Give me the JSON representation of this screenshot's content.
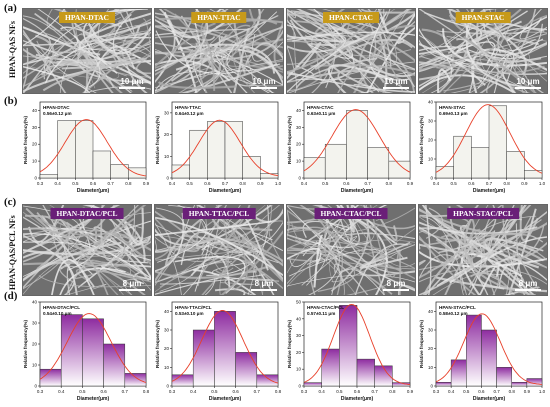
{
  "labels": {
    "a": "(a)",
    "b": "(b)",
    "c": "(c)",
    "d": "(d)",
    "row_a": "HPAN-QAS NFs",
    "row_c": "HPAN-QAS/PCL NFs"
  },
  "sem_a": [
    {
      "tag": "HPAN-DTAC",
      "scale": "10 μm"
    },
    {
      "tag": "HPAN-TTAC",
      "scale": "10 μm"
    },
    {
      "tag": "HPAN-CTAC",
      "scale": "10 μm"
    },
    {
      "tag": "HPAN-STAC",
      "scale": "10 μm"
    }
  ],
  "sem_c": [
    {
      "tag": "HPAN-DTAC/PCL",
      "scale": "8 μm"
    },
    {
      "tag": "HPAN-TTAC/PCL",
      "scale": "8 μm"
    },
    {
      "tag": "HPAN-CTAC/PCL",
      "scale": "8 μm"
    },
    {
      "tag": "HPAN-STAC/PCL",
      "scale": "8 μm"
    }
  ],
  "colors": {
    "bar_b": "#f3f3ee",
    "bar_d_top": "#8e2ca0",
    "bar_d_bottom": "#ffffff",
    "curve": "#e8402a",
    "gold": "#c79a1a",
    "purple": "#6a1f78"
  },
  "chart_data": [
    {
      "type": "bar",
      "panel": "b",
      "name": "HPAN-DTAC",
      "stat": "0.56±0.12 μm",
      "xlabel": "Diameter(μm)",
      "ylabel": "Relative frequency(%)",
      "categories": [
        0.3,
        0.4,
        0.5,
        0.6,
        0.7,
        0.8
      ],
      "values": [
        2,
        34,
        34,
        16,
        8,
        6
      ],
      "xlim": [
        0.3,
        0.9
      ],
      "ylim": [
        0,
        45
      ],
      "xticks": [
        "0.3",
        "0.4",
        "0.5",
        "0.6",
        "0.7",
        "0.8",
        "0.9"
      ],
      "yticks": [
        "0",
        "10",
        "20",
        "30",
        "40"
      ]
    },
    {
      "type": "bar",
      "panel": "b",
      "name": "HPAN-TTAC",
      "stat": "0.64±0.12 μm",
      "xlabel": "Diameter(μm)",
      "ylabel": "Relative frequency(%)",
      "categories": [
        0.4,
        0.5,
        0.6,
        0.7,
        0.8,
        0.9
      ],
      "values": [
        6,
        22,
        26,
        26,
        10,
        2
      ],
      "xlim": [
        0.4,
        1.0
      ],
      "ylim": [
        0,
        35
      ],
      "xticks": [
        "0.4",
        "0.5",
        "0.6",
        "0.7",
        "0.8",
        "0.9",
        "1.0"
      ],
      "yticks": [
        "0",
        "10",
        "20",
        "30"
      ]
    },
    {
      "type": "bar",
      "panel": "b",
      "name": "HPAN-CTAC",
      "stat": "0.63±0.11 μm",
      "xlabel": "Diameter(μm)",
      "ylabel": "Relative frequency(%)",
      "categories": [
        0.4,
        0.5,
        0.6,
        0.7,
        0.8
      ],
      "values": [
        12,
        20,
        40,
        18,
        10
      ],
      "xlim": [
        0.4,
        0.9
      ],
      "ylim": [
        0,
        45
      ],
      "xticks": [
        "0.4",
        "0.5",
        "0.6",
        "0.7",
        "0.8",
        "0.9"
      ],
      "yticks": [
        "0",
        "10",
        "20",
        "30",
        "40"
      ]
    },
    {
      "type": "bar",
      "panel": "b",
      "name": "HPAN-STAC",
      "stat": "0.69±0.13 μm",
      "xlabel": "Diameter(μm)",
      "ylabel": "Relative frequency(%)",
      "categories": [
        0.4,
        0.5,
        0.6,
        0.7,
        0.8,
        0.9
      ],
      "values": [
        6,
        22,
        16,
        38,
        14,
        4
      ],
      "xlim": [
        0.4,
        1.0
      ],
      "ylim": [
        0,
        40
      ],
      "xticks": [
        "0.4",
        "0.5",
        "0.6",
        "0.7",
        "0.8",
        "0.9",
        "1.0"
      ],
      "yticks": [
        "0",
        "10",
        "20",
        "30",
        "40"
      ]
    },
    {
      "type": "bar",
      "panel": "d",
      "name": "HPAN-DTAC/PCL",
      "stat": "0.54±0.10 μm",
      "xlabel": "Diameter(μm)",
      "ylabel": "Relative frequency(%)",
      "categories": [
        0.3,
        0.4,
        0.5,
        0.6,
        0.7
      ],
      "values": [
        8,
        34,
        32,
        20,
        6
      ],
      "xlim": [
        0.3,
        0.8
      ],
      "ylim": [
        0,
        40
      ],
      "xticks": [
        "0.3",
        "0.4",
        "0.5",
        "0.6",
        "0.7",
        "0.8"
      ],
      "yticks": [
        "0",
        "10",
        "20",
        "30",
        "40"
      ]
    },
    {
      "type": "bar",
      "panel": "d",
      "name": "HPAN-TTAC/PCL",
      "stat": "0.53±0.10 μm",
      "xlabel": "Diameter(μm)",
      "ylabel": "Relative frequency(%)",
      "categories": [
        0.3,
        0.4,
        0.5,
        0.6,
        0.7
      ],
      "values": [
        6,
        30,
        40,
        18,
        6
      ],
      "xlim": [
        0.3,
        0.8
      ],
      "ylim": [
        0,
        45
      ],
      "xticks": [
        "0.3",
        "0.4",
        "0.5",
        "0.6",
        "0.7",
        "0.8"
      ],
      "yticks": [
        "0",
        "10",
        "20",
        "30",
        "40"
      ]
    },
    {
      "type": "bar",
      "panel": "d",
      "name": "HPAN-CTAC/PCL",
      "stat": "0.57±0.11 μm",
      "xlabel": "Diameter(μm)",
      "ylabel": "Relative frequency(%)",
      "categories": [
        0.3,
        0.4,
        0.5,
        0.6,
        0.7,
        0.8
      ],
      "values": [
        2,
        22,
        48,
        16,
        12,
        2
      ],
      "xlim": [
        0.3,
        0.9
      ],
      "ylim": [
        0,
        50
      ],
      "xticks": [
        "0.3",
        "0.4",
        "0.5",
        "0.6",
        "0.7",
        "0.8",
        "0.9"
      ],
      "yticks": [
        "0",
        "10",
        "20",
        "30",
        "40",
        "50"
      ]
    },
    {
      "type": "bar",
      "panel": "d",
      "name": "HPAN-STAC/PCL",
      "stat": "0.58±0.12 μm",
      "xlabel": "Diameter(μm)",
      "ylabel": "Relative frequency(%)",
      "categories": [
        0.3,
        0.4,
        0.5,
        0.6,
        0.7,
        0.8,
        0.9
      ],
      "values": [
        2,
        14,
        38,
        30,
        10,
        2,
        4
      ],
      "xlim": [
        0.3,
        1.0
      ],
      "ylim": [
        0,
        45
      ],
      "xticks": [
        "0.3",
        "0.4",
        "0.5",
        "0.6",
        "0.7",
        "0.8",
        "0.9",
        "1.0"
      ],
      "yticks": [
        "0",
        "10",
        "20",
        "30",
        "40"
      ]
    }
  ]
}
